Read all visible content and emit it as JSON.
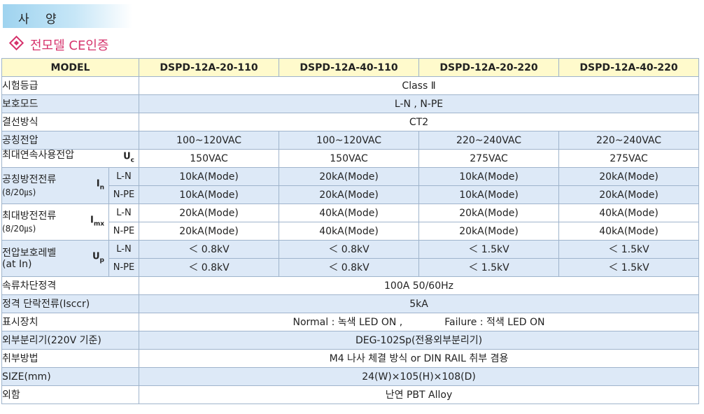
{
  "page": {
    "title": "사 양",
    "subtitle": "전모델 CE인증"
  },
  "table": {
    "header": {
      "model_label": "MODEL",
      "models": [
        "DSPD-12A-20-110",
        "DSPD-12A-40-110",
        "DSPD-12A-20-220",
        "DSPD-12A-40-220"
      ]
    },
    "test_class": {
      "label": "시험등급",
      "value": "Class  Ⅱ"
    },
    "protection_mode": {
      "label": "보호모드",
      "value": "L-N ,  N-PE"
    },
    "connection": {
      "label": "결선방식",
      "value": "CT2"
    },
    "nominal_voltage": {
      "label": "공칭전압",
      "values": [
        "100~120VAC",
        "100~120VAC",
        "220~240VAC",
        "220~240VAC"
      ]
    },
    "max_continuous_voltage": {
      "label": "최대연속사용전압",
      "symbol": "U",
      "symbol_sub": "c",
      "values": [
        "150VAC",
        "150VAC",
        "275VAC",
        "275VAC"
      ]
    },
    "nominal_discharge": {
      "label": "공칭방전전류",
      "label_sub": "(8/20㎲)",
      "symbol": "I",
      "symbol_sub": "n",
      "rows": [
        {
          "mode": "L-N",
          "values": [
            "10kA(Mode)",
            "20kA(Mode)",
            "10kA(Mode)",
            "20kA(Mode)"
          ]
        },
        {
          "mode": "N-PE",
          "values": [
            "10kA(Mode)",
            "20kA(Mode)",
            "10kA(Mode)",
            "20kA(Mode)"
          ]
        }
      ]
    },
    "max_discharge": {
      "label": "최대방전전류",
      "label_sub": "(8/20㎲)",
      "symbol": "I",
      "symbol_sub": "mx",
      "rows": [
        {
          "mode": "L-N",
          "values": [
            "20kA(Mode)",
            "40kA(Mode)",
            "20kA(Mode)",
            "40kA(Mode)"
          ]
        },
        {
          "mode": "N-PE",
          "values": [
            "20kA(Mode)",
            "40kA(Mode)",
            "20kA(Mode)",
            "40kA(Mode)"
          ]
        }
      ]
    },
    "protection_level": {
      "label": "전압보호레벨",
      "label_sub": "(at  In)",
      "symbol": "U",
      "symbol_sub": "p",
      "rows": [
        {
          "mode": "L-N",
          "values": [
            "＜ 0.8kV",
            "＜ 0.8kV",
            "＜ 1.5kV",
            "＜ 1.5kV"
          ]
        },
        {
          "mode": "N-PE",
          "values": [
            "＜ 0.8kV",
            "＜ 0.8kV",
            "＜ 1.5kV",
            "＜ 1.5kV"
          ]
        }
      ]
    },
    "follow_current": {
      "label": "속류차단정격",
      "value": "100A  50/60Hz"
    },
    "short_circuit": {
      "label": "정격  단락전류(Isccr)",
      "value": "5kA"
    },
    "indicator": {
      "label": "표시장치",
      "normal": "Normal : 녹색  LED  ON ,",
      "failure": "Failure : 적색  LED  ON"
    },
    "external_disconnector": {
      "label": "외부분리기(220V  기준)",
      "value": "DEG-102Sp(전용외부분리기)"
    },
    "mounting": {
      "label": "취부방법",
      "value": "M4  나사  체결  방식  or  DIN  RAIL  취부  겸용"
    },
    "size": {
      "label": "SIZE(mm)",
      "value": "24(W)×105(H)×108(D)"
    },
    "appearance": {
      "label": "외함",
      "value": "난연  PBT  Alloy"
    }
  }
}
